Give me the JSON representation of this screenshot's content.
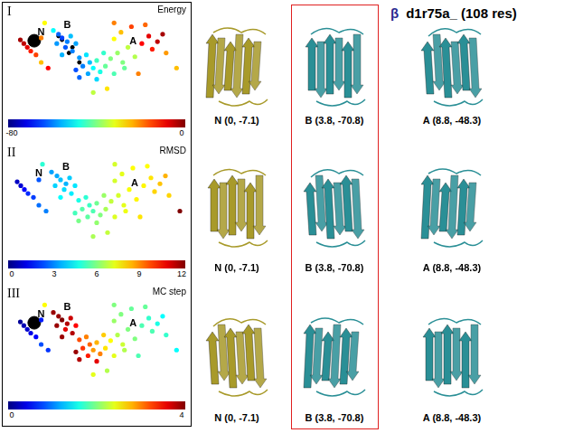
{
  "title_symbol": "β",
  "title": "d1r75a_ (108 res)",
  "chart_data": [
    {
      "type": "scatter",
      "panel": "I",
      "title": "Energy",
      "xlim": [
        0,
        100
      ],
      "ylim": [
        0,
        100
      ],
      "tick_labels": false,
      "grid": false,
      "x": [
        8,
        10,
        12,
        6,
        15,
        18,
        28,
        30,
        33,
        27,
        35,
        32,
        25,
        38,
        36,
        30,
        40,
        44,
        46,
        42,
        48,
        50,
        52,
        45,
        40,
        50,
        55,
        58,
        54,
        38,
        62,
        65,
        60,
        68,
        66,
        72,
        74,
        60,
        64,
        70,
        76,
        80,
        82,
        85,
        78,
        88,
        90,
        20,
        96,
        56,
        48,
        22,
        18,
        60
      ],
      "y": [
        70,
        66,
        62,
        74,
        58,
        76,
        80,
        76,
        72,
        70,
        78,
        66,
        84,
        70,
        62,
        58,
        55,
        58,
        50,
        46,
        44,
        52,
        40,
        38,
        34,
        32,
        46,
        54,
        60,
        42,
        60,
        50,
        38,
        66,
        44,
        56,
        38,
        75,
        82,
        88,
        70,
        78,
        64,
        72,
        90,
        80,
        60,
        92,
        44,
        22,
        18,
        44,
        50,
        92
      ],
      "color_values": [
        -5,
        -8,
        -12,
        -3,
        -15,
        -20,
        -62,
        -65,
        -60,
        -58,
        -55,
        -63,
        -50,
        -57,
        -60,
        -56,
        -58,
        -52,
        -55,
        -60,
        -50,
        -45,
        -48,
        -57,
        -62,
        -53,
        -42,
        -40,
        -46,
        -64,
        -38,
        -40,
        -44,
        -35,
        -42,
        -36,
        -20,
        -30,
        -25,
        -15,
        -10,
        -8,
        -12,
        -5,
        -18,
        -3,
        -22,
        -30,
        -25,
        -28,
        -35,
        -10,
        -25,
        -20
      ],
      "color_range": [
        -80,
        0
      ],
      "color_ticks": [
        -80,
        0
      ],
      "reference_point": {
        "x": 14,
        "y": 73
      },
      "marked": {
        "x": [
          28,
          30,
          36,
          40,
          34
        ],
        "y": [
          78,
          74,
          66,
          50,
          60
        ]
      },
      "annotations": [
        {
          "text": "N",
          "x": 18,
          "y": 82
        },
        {
          "text": "B",
          "x": 33,
          "y": 89
        },
        {
          "text": "A",
          "x": 71,
          "y": 72
        }
      ]
    },
    {
      "type": "scatter",
      "panel": "II",
      "title": "RMSD",
      "xlim": [
        0,
        100
      ],
      "ylim": [
        0,
        100
      ],
      "tick_labels": false,
      "grid": false,
      "x": [
        8,
        10,
        12,
        6,
        15,
        18,
        28,
        30,
        33,
        27,
        35,
        32,
        25,
        38,
        36,
        30,
        40,
        44,
        46,
        42,
        48,
        50,
        52,
        45,
        40,
        50,
        55,
        58,
        54,
        38,
        62,
        65,
        60,
        68,
        66,
        72,
        74,
        60,
        64,
        70,
        76,
        80,
        82,
        85,
        78,
        88,
        90,
        20,
        96,
        56,
        48,
        22,
        18,
        60
      ],
      "y": [
        70,
        66,
        62,
        74,
        58,
        76,
        80,
        76,
        72,
        70,
        78,
        66,
        84,
        70,
        62,
        58,
        55,
        58,
        50,
        46,
        44,
        52,
        40,
        38,
        34,
        32,
        46,
        54,
        60,
        42,
        60,
        50,
        38,
        66,
        44,
        56,
        38,
        75,
        82,
        88,
        70,
        78,
        64,
        72,
        90,
        80,
        60,
        92,
        44,
        22,
        18,
        44,
        50,
        92
      ],
      "color_values": [
        1,
        1.5,
        2,
        0.8,
        2.2,
        2.5,
        3.5,
        3.8,
        3.6,
        4,
        3.9,
        4.1,
        3.4,
        4.2,
        4.3,
        4.5,
        4.8,
        5,
        5.2,
        5.5,
        5.4,
        5.8,
        6,
        5.6,
        5.9,
        6.2,
        6.5,
        6.8,
        6.3,
        5.3,
        7,
        7.2,
        7.1,
        7.4,
        7.3,
        7.6,
        7.8,
        7,
        7.2,
        7.5,
        7.6,
        7.8,
        8,
        8.2,
        7.5,
        8.4,
        8,
        5,
        12,
        6.8,
        6.5,
        3,
        2.8,
        7
      ],
      "color_range": [
        0,
        12
      ],
      "color_ticks": [
        0,
        3,
        6,
        9,
        12
      ],
      "annotations": [
        {
          "text": "N",
          "x": 18,
          "y": 82
        },
        {
          "text": "B",
          "x": 33,
          "y": 89
        },
        {
          "text": "A",
          "x": 71,
          "y": 72
        }
      ]
    },
    {
      "type": "scatter",
      "panel": "III",
      "title": "MC step",
      "xlim": [
        0,
        100
      ],
      "ylim": [
        0,
        100
      ],
      "tick_labels": false,
      "grid": false,
      "x": [
        8,
        10,
        12,
        6,
        15,
        18,
        28,
        30,
        33,
        27,
        35,
        32,
        25,
        38,
        36,
        30,
        40,
        44,
        46,
        42,
        48,
        50,
        52,
        45,
        40,
        50,
        55,
        58,
        54,
        38,
        62,
        65,
        60,
        68,
        66,
        72,
        74,
        60,
        64,
        70,
        76,
        80,
        82,
        85,
        78,
        88,
        90,
        20,
        96,
        56,
        48,
        22,
        18,
        60
      ],
      "y": [
        70,
        66,
        62,
        74,
        58,
        76,
        80,
        76,
        72,
        70,
        78,
        66,
        84,
        70,
        62,
        58,
        55,
        58,
        50,
        46,
        44,
        52,
        40,
        38,
        34,
        32,
        46,
        54,
        60,
        42,
        60,
        50,
        38,
        66,
        44,
        56,
        38,
        75,
        82,
        88,
        70,
        78,
        64,
        72,
        90,
        80,
        60,
        92,
        44,
        22,
        18,
        44,
        50,
        92
      ],
      "color_values": [
        0.2,
        0.3,
        0.4,
        0.1,
        0.5,
        0.6,
        3.9,
        4,
        3.8,
        3.9,
        3.7,
        3.6,
        3.9,
        3.5,
        3.8,
        3.9,
        3.2,
        3,
        3.1,
        3.3,
        2.9,
        2.8,
        3,
        3.4,
        3.8,
        3.6,
        2.6,
        2.5,
        2.7,
        3.9,
        2.2,
        2.3,
        2.4,
        2,
        2.2,
        2,
        1.8,
        2.1,
        2,
        1.9,
        1.8,
        1.7,
        1.8,
        1.6,
        1.9,
        1.5,
        1.7,
        2.5,
        1.5,
        2.2,
        2.4,
        0.7,
        0.8,
        2
      ],
      "color_range": [
        0,
        4
      ],
      "color_ticks": [
        0,
        4
      ],
      "reference_point": {
        "x": 14,
        "y": 73
      },
      "annotations": [
        {
          "text": "N",
          "x": 18,
          "y": 82
        },
        {
          "text": "B",
          "x": 33,
          "y": 89
        },
        {
          "text": "A",
          "x": 71,
          "y": 72
        }
      ]
    }
  ],
  "structures": {
    "highlight": "B",
    "columns": [
      {
        "name": "N",
        "color": "#a89a2a"
      },
      {
        "name": "B",
        "color": "#2a8f96"
      },
      {
        "name": "A",
        "color": "#2a8f96"
      }
    ],
    "rows": [
      [
        "N (0, -7.1)",
        "B (3.8, -70.8)",
        "A (8.8, -48.3)"
      ],
      [
        "N (0, -7.1)",
        "B (3.8, -70.8)",
        "A (8.8, -48.3)"
      ],
      [
        "N (0, -7.1)",
        "B (3.8, -70.8)",
        "A (8.8, -48.3)"
      ]
    ]
  }
}
